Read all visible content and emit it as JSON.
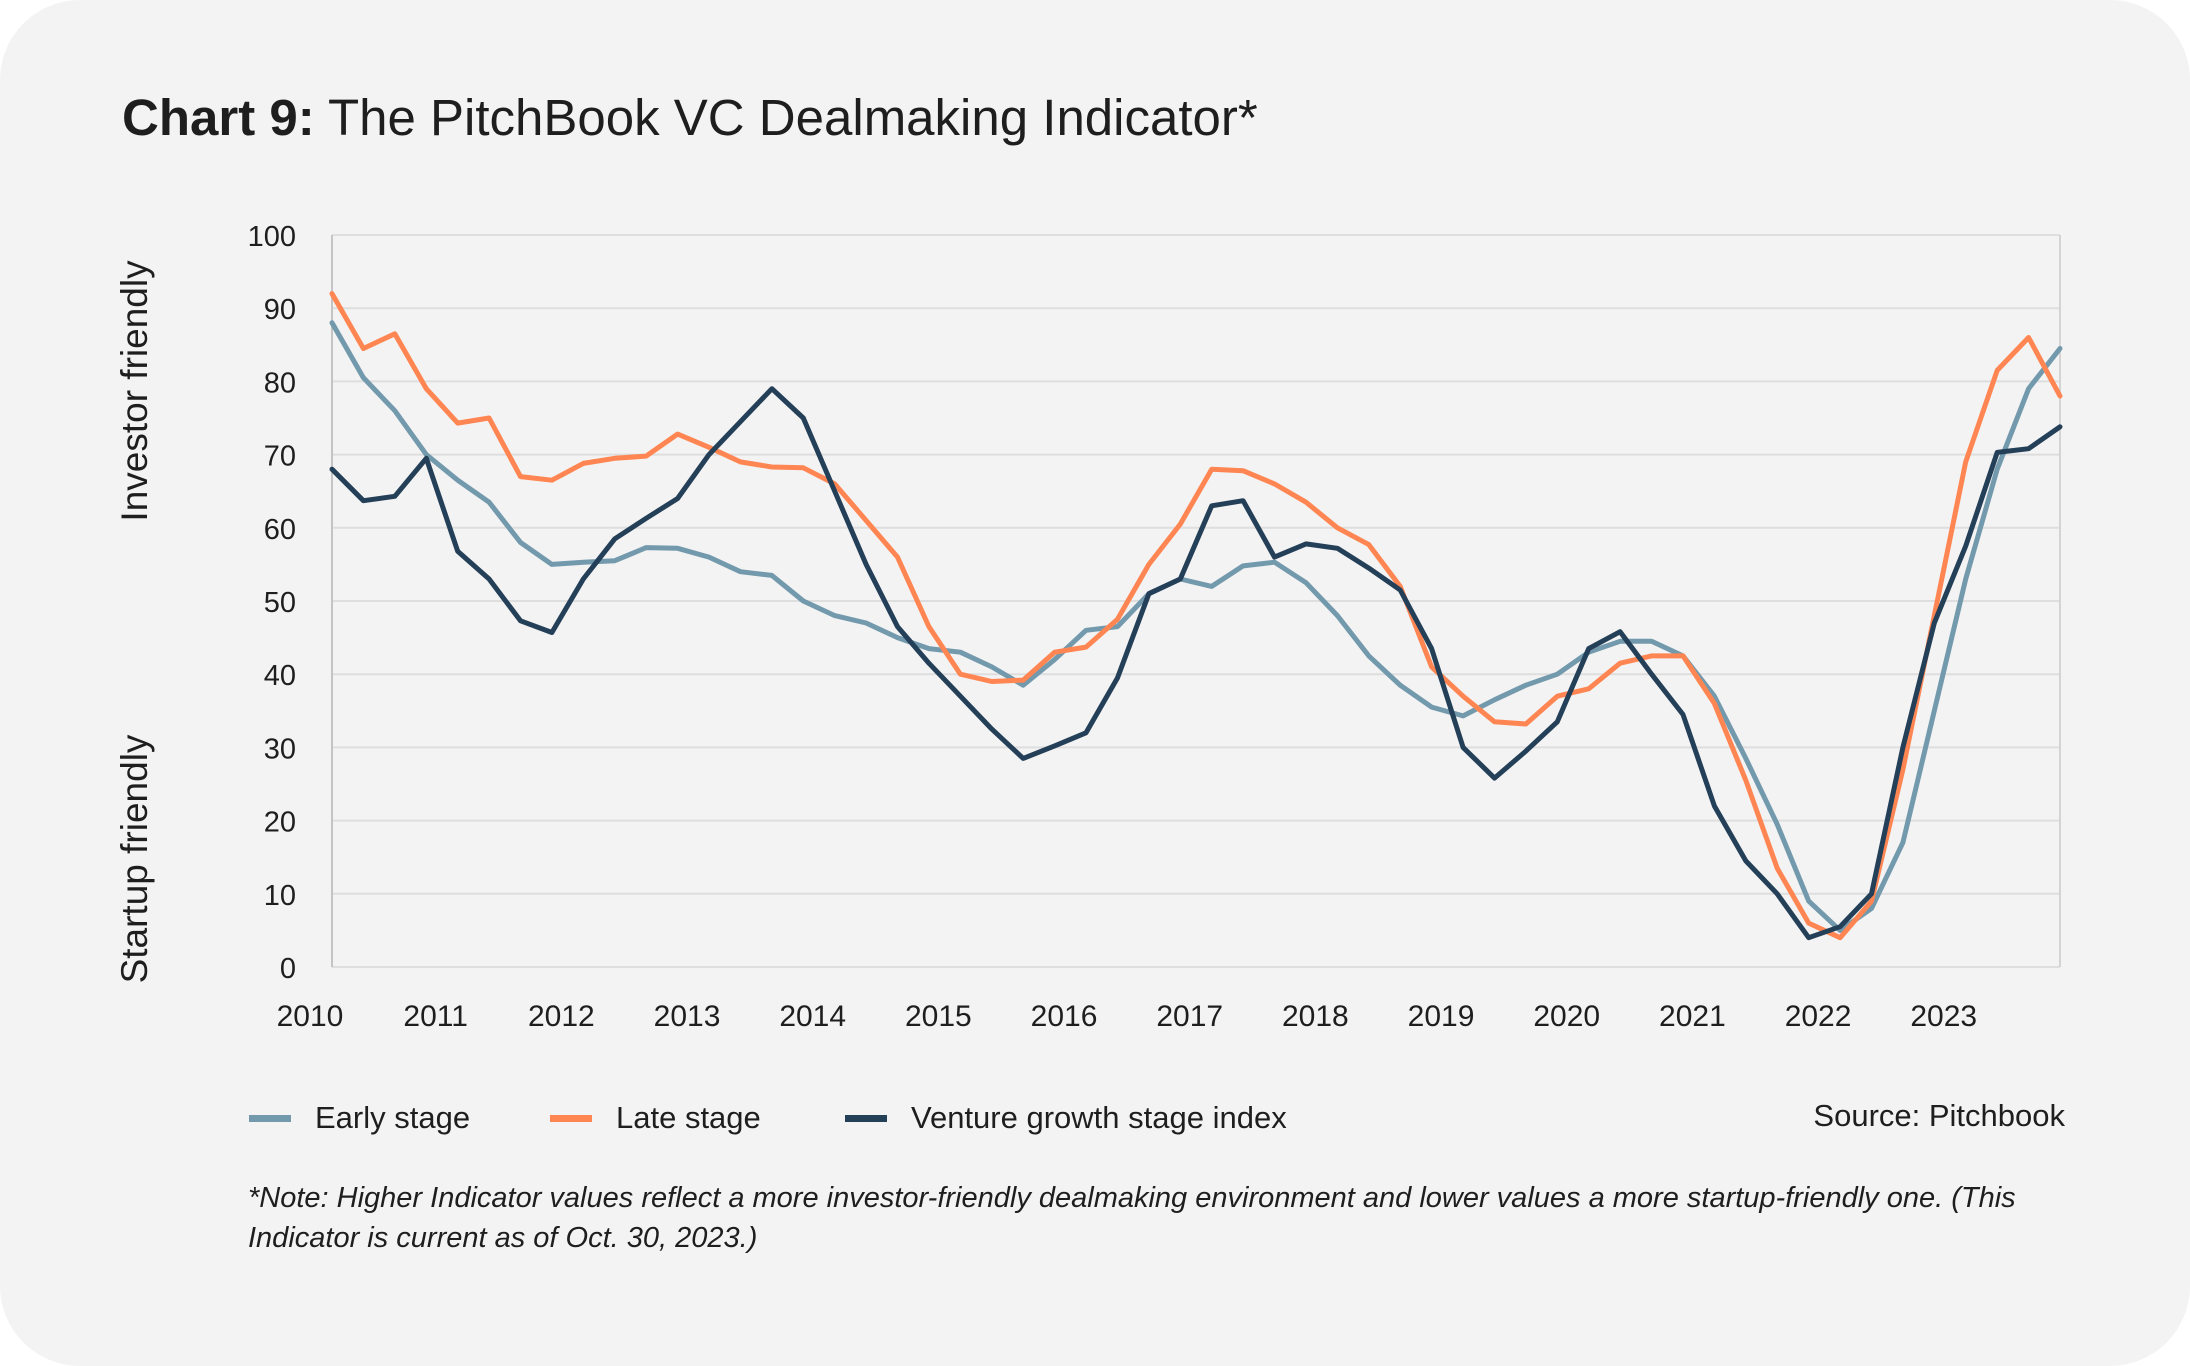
{
  "title": {
    "bold": "Chart 9:",
    "rest": " The PitchBook VC Dealmaking Indicator*"
  },
  "axis_labels": {
    "upper": "Investor friendly",
    "lower": "Startup friendly"
  },
  "source": "Source: Pitchbook",
  "note": "*Note: Higher Indicator values reflect a more investor-friendly dealmaking environment and lower values a more startup-friendly one. (This Indicator is current as of Oct. 30, 2023.)",
  "chart_data": {
    "type": "line",
    "title": "The PitchBook VC Dealmaking Indicator*",
    "x_frequency": "quarterly",
    "x_start": "2010 Q1",
    "x_end": "2023 Q4",
    "x_tick_labels": [
      "2010",
      "2011",
      "2012",
      "2013",
      "2014",
      "2015",
      "2016",
      "2017",
      "2018",
      "2019",
      "2020",
      "2021",
      "2022",
      "2023"
    ],
    "y_ticks": [
      0,
      10,
      20,
      30,
      40,
      50,
      60,
      70,
      80,
      90,
      100
    ],
    "ylim": [
      0,
      100
    ],
    "grid": true,
    "legend_position": "bottom-left",
    "series": [
      {
        "name": "Early stage",
        "color": "#7399ad",
        "values": [
          88,
          80.5,
          76,
          70,
          66.5,
          63.5,
          58,
          55,
          55.3,
          55.5,
          57.3,
          57.2,
          56,
          54,
          53.5,
          50,
          48,
          47,
          45,
          43.5,
          43,
          41,
          38.5,
          42,
          46,
          46.5,
          51,
          53,
          52,
          54.8,
          55.3,
          52.5,
          48,
          42.5,
          38.5,
          35.5,
          34.3,
          36.5,
          38.5,
          40,
          43,
          44.5,
          44.5,
          42.5,
          37,
          28.5,
          19.5,
          9,
          5,
          8,
          17,
          35,
          53,
          68,
          79,
          84.5
        ]
      },
      {
        "name": "Late stage",
        "color": "#ff8652",
        "values": [
          92,
          84.5,
          86.5,
          79,
          74.3,
          75,
          67,
          66.5,
          68.8,
          69.5,
          69.8,
          72.8,
          71,
          69,
          68.3,
          68.2,
          66,
          61,
          56,
          46.5,
          40,
          39,
          39.2,
          43,
          43.7,
          47.5,
          55,
          60.5,
          68,
          67.8,
          66,
          63.5,
          60,
          57.7,
          52,
          41,
          37,
          33.5,
          33.2,
          37,
          38,
          41.5,
          42.5,
          42.5,
          36,
          25.5,
          13.5,
          6,
          4,
          9,
          27,
          48,
          69,
          81.5,
          86,
          78
        ]
      },
      {
        "name": "Venture growth stage index",
        "color": "#243f58",
        "values": [
          68,
          63.7,
          64.3,
          69.5,
          56.8,
          53,
          47.3,
          45.7,
          53,
          58.5,
          61.3,
          64,
          70,
          74.5,
          79,
          75,
          65,
          55,
          46.5,
          41.5,
          37,
          32.5,
          28.5,
          30.2,
          32,
          39.5,
          51,
          53,
          63,
          63.7,
          56,
          57.8,
          57.2,
          54.5,
          51.5,
          43.5,
          30,
          25.8,
          29.5,
          33.5,
          43.5,
          45.8,
          40,
          34.5,
          22,
          14.5,
          10,
          4,
          5.5,
          10,
          30,
          47,
          57.5,
          70.3,
          70.8,
          73.8
        ]
      }
    ]
  }
}
